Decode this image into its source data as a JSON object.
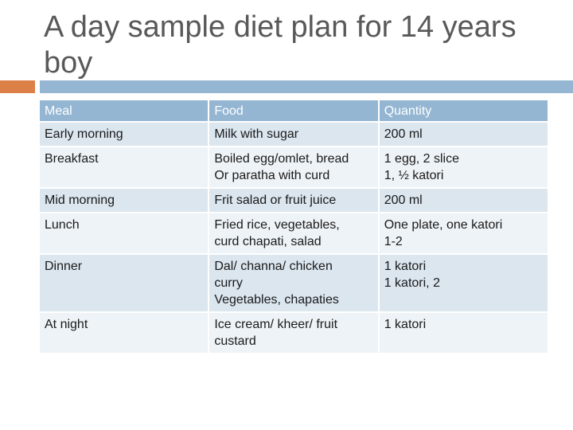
{
  "title": "A day sample diet plan for 14 years boy",
  "table": {
    "headers": [
      "Meal",
      "Food",
      "Quantity"
    ],
    "rows": [
      {
        "meal": "Early morning",
        "food": "Milk with sugar",
        "quantity": "200 ml"
      },
      {
        "meal": "Breakfast",
        "food": "Boiled egg/omlet, bread\nOr paratha with curd",
        "quantity": "1 egg, 2 slice\n1, ½ katori"
      },
      {
        "meal": "Mid morning",
        "food": "Frit salad or fruit juice",
        "quantity": "200 ml"
      },
      {
        "meal": "Lunch",
        "food": "Fried rice, vegetables,\ncurd chapati, salad",
        "quantity": "One plate, one katori\n1-2"
      },
      {
        "meal": "Dinner",
        "food": "Dal/ channa/ chicken\ncurry\nVegetables, chapaties",
        "quantity": "1 katori\n1 katori, 2"
      },
      {
        "meal": "At night",
        "food": "Ice cream/ kheer/ fruit\ncustard",
        "quantity": "1 katori"
      }
    ]
  },
  "colors": {
    "header_bg": "#94b6d2",
    "row_odd_bg": "#dbe6ef",
    "row_even_bg": "#eef3f7",
    "accent_orange": "#dd8047",
    "title_color": "#595959"
  }
}
